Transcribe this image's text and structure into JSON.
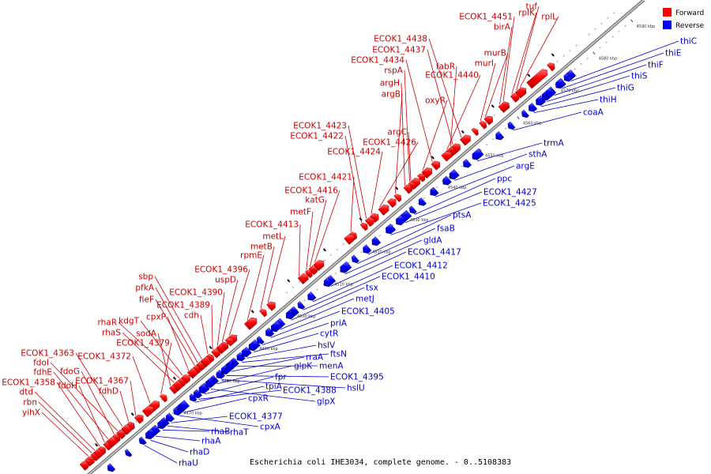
{
  "caption": "Escherichia coli IHE3034, complete genome. - 0..5108383",
  "legend": [
    {
      "label": "Forward",
      "color": "#ff0000"
    },
    {
      "label": "Reverse",
      "color": "#0000ff"
    }
  ],
  "colors": {
    "forward": "#ff0000",
    "reverse": "#0000ff",
    "forward_label": "#cc0000",
    "reverse_label": "#0000cc",
    "backbone": "#888888"
  },
  "ticks": [
    "4470 kbp",
    "4480 kbp",
    "4490 kbp",
    "4500 kbp",
    "4510 kbp",
    "4520 kbp",
    "4530 kbp",
    "4540 kbp",
    "4550 kbp",
    "4560 kbp",
    "4570 kbp",
    "4580 kbp",
    "4590 kbp"
  ],
  "forward_labels": [
    "yihX",
    "rbn",
    "dtd",
    "ECOK1_4358",
    "fdoH",
    "fdhE",
    "fdoG",
    "fdoI",
    "ECOK1_4363",
    "fdhD",
    "ECOK1_4367",
    "ECOK1_4372",
    "ECOK1_4379",
    "sodA",
    "rhaS",
    "rhaR",
    "kdgT",
    "cpxP",
    "fieF",
    "pfkA",
    "sbp",
    "cdh",
    "ECOK1_4389",
    "ECOK1_4390",
    "uspD",
    "ECOK1_4396",
    "rpmE",
    "metB",
    "metL",
    "ECOK1_4413",
    "metF",
    "katG",
    "ECOK1_4416",
    "ECOK1_4421",
    "ECOK1_4424",
    "ECOK1_4426",
    "ECOK1_4422",
    "ECOK1_4423",
    "argC",
    "argB",
    "argH",
    "oxyR",
    "rspA",
    "ECOK1_4434",
    "ECOK1_4440",
    "fabR",
    "ECOK1_4437",
    "ECOK1_4438",
    "murI",
    "murB",
    "birA",
    "ECOK1_4451",
    "rplK",
    "tuf",
    "rplL"
  ],
  "reverse_labels": [
    "rhaU",
    "rhaD",
    "rhaA",
    "rhaB",
    "rhaT",
    "ECOK1_4377",
    "cpxA",
    "cpxR",
    "tpiA",
    "ECOK1_4388",
    "fpr",
    "glpX",
    "glpK",
    "hslU",
    "ECOK1_4395",
    "rraA",
    "menA",
    "ftsN",
    "hslV",
    "cytR",
    "priA",
    "ECOK1_4405",
    "metJ",
    "tsx",
    "ECOK1_4410",
    "ECOK1_4412",
    "ECOK1_4417",
    "gldA",
    "fsaB",
    "ptsA",
    "ECOK1_4425",
    "ECOK1_4427",
    "ppc",
    "argE",
    "sthA",
    "trmA",
    "coaA",
    "thiH",
    "thiG",
    "thiS",
    "thiF",
    "thiE",
    "thiC"
  ]
}
